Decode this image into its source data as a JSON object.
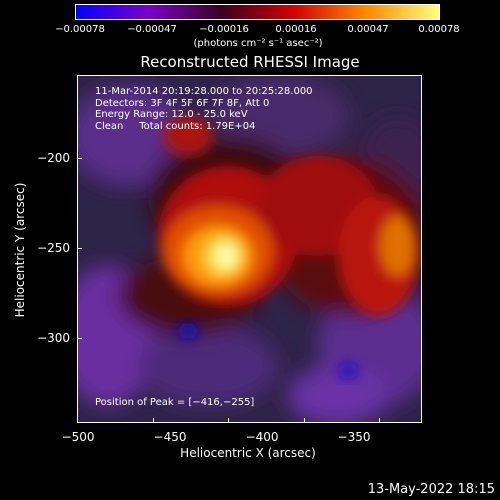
{
  "colorbar": {
    "ticks": [
      "−0.00078",
      "−0.00047",
      "−0.00016",
      "0.00016",
      "0.00047",
      "0.00078"
    ],
    "unit_label": "(photons cm⁻² s⁻¹ asec⁻²)",
    "colors": [
      "#0000ff",
      "#7a00c8",
      "#3a0020",
      "#d40000",
      "#ff8a00",
      "#ffff80"
    ]
  },
  "plot": {
    "title": "Reconstructed RHESSI Image",
    "info_lines": [
      "11-Mar-2014 20:19:28.000 to 20:25:28.000",
      "Detectors: 3F 4F 5F 6F 7F 8F, Att 0",
      "Energy Range: 12.0 - 25.0 keV",
      "Clean     Total counts: 1.79E+04"
    ],
    "peak_label": "Position of Peak = [−416,−255]",
    "xlabel": "Heliocentric X (arcsec)",
    "ylabel": "Heliocentric Y (arcsec)",
    "x_ticks": [
      "−500",
      "−450",
      "−400",
      "−350"
    ],
    "y_ticks": [
      "−200",
      "−250",
      "−300"
    ]
  },
  "footer": {
    "timestamp": "13-May-2022 18:15"
  }
}
